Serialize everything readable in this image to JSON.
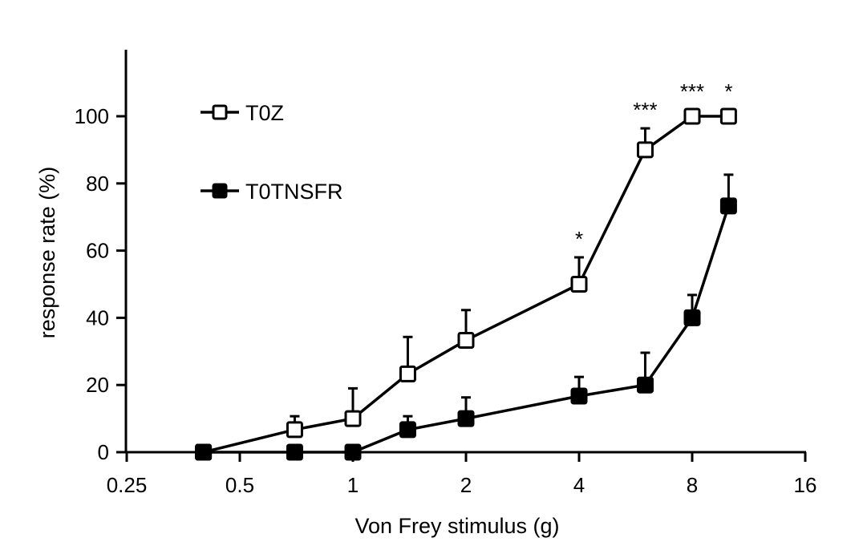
{
  "chart_data": {
    "type": "line",
    "title": "",
    "xlabel": "Von Frey stimulus (g)",
    "ylabel": "response rate (%)",
    "x_scale": "log2",
    "xlim": [
      0.25,
      16
    ],
    "ylim": [
      0,
      100
    ],
    "x_ticks": [
      0.25,
      0.5,
      1,
      2,
      4,
      8,
      16
    ],
    "x_tick_labels": [
      "0.25",
      "0.5",
      "1",
      "2",
      "4",
      "8",
      "16"
    ],
    "y_ticks": [
      0,
      20,
      40,
      60,
      80,
      100
    ],
    "y_tick_labels": [
      "0",
      "20",
      "40",
      "60",
      "80",
      "100"
    ],
    "grid": false,
    "legend_position": "top-left",
    "x": [
      0.4,
      0.7,
      1,
      1.4,
      2,
      4,
      6,
      8,
      10
    ],
    "series": [
      {
        "name": "T0Z",
        "marker": "open-square",
        "values": [
          0,
          6.7,
          10,
          23.3,
          33.3,
          50,
          90,
          100,
          100
        ],
        "error_up": [
          0,
          4,
          9,
          11,
          9,
          8,
          6.4,
          0,
          0
        ]
      },
      {
        "name": "T0TNSFR",
        "marker": "filled-square",
        "values": [
          0,
          0,
          0,
          6.7,
          10,
          16.7,
          20,
          40,
          73.3
        ],
        "error_up": [
          0,
          0,
          0,
          4,
          6.3,
          5.7,
          9.6,
          6.8,
          9.3
        ]
      }
    ],
    "annotations": [
      {
        "x": 4,
        "text": "*"
      },
      {
        "x": 6,
        "text": "***"
      },
      {
        "x": 8,
        "text": "***"
      },
      {
        "x": 10,
        "text": "*"
      }
    ]
  }
}
